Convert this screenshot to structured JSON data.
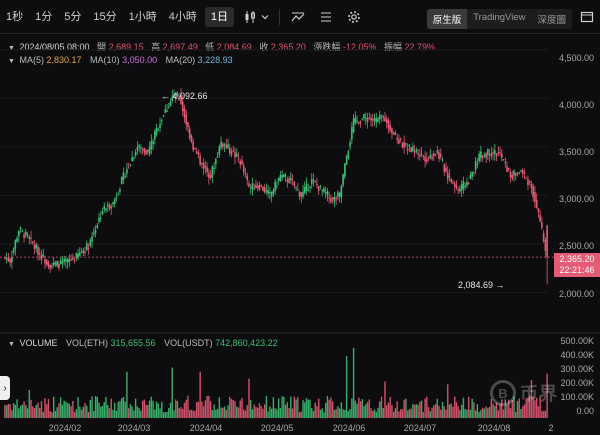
{
  "toolbar": {
    "timeframes": [
      "1秒",
      "1分",
      "5分",
      "15分",
      "1小時",
      "4小時",
      "1日"
    ],
    "active_timeframe": "1日",
    "views": [
      "原生版",
      "TradingView",
      "深度圖"
    ],
    "active_view": "原生版"
  },
  "ohlc": {
    "date": "2024/08/05 08:00",
    "open_label": "開",
    "open": "2,689.15",
    "high_label": "高",
    "high": "2,697.49",
    "low_label": "低",
    "low": "2,084.69",
    "close_label": "收",
    "close": "2,365.20",
    "change_label": "漲跌幅",
    "change": "-12.05%",
    "amp_label": "振幅",
    "amp": "22.79%"
  },
  "ma": {
    "ma5_label": "MA(5)",
    "ma5": "2,830.17",
    "ma10_label": "MA(10)",
    "ma10": "3,050.00",
    "ma20_label": "MA(20)",
    "ma20": "3,228.93"
  },
  "volume": {
    "label": "VOLUME",
    "eth_label": "VOL(ETH)",
    "eth": "315,655.56",
    "usdt_label": "VOL(USDT)",
    "usdt": "742,860,423.22"
  },
  "price_axis": [
    "4,500.00",
    "4,000.00",
    "3,500.00",
    "3,000.00",
    "2,500.00",
    "2,000.00"
  ],
  "volume_axis": [
    "500.00K",
    "400.00K",
    "300.00K",
    "200.00K",
    "100.00K",
    "0.00"
  ],
  "x_axis": [
    "2024/02",
    "2024/03",
    "2024/04",
    "2024/05",
    "2024/06",
    "2024/07",
    "2024/08",
    "2"
  ],
  "current_price": {
    "price": "2,365.20",
    "countdown": "22:21:46",
    "value": 2365.2
  },
  "annotations": {
    "high": "4,092.66",
    "low": "2,084.69"
  },
  "colors": {
    "up": "#3fbf74",
    "down": "#e35b74",
    "bg": "#0d0d0f",
    "grid": "#1c1c1f"
  },
  "icons": [
    "candle-type-icon",
    "dropdown-chevron-icon",
    "indicators-icon",
    "drawing-tools-icon",
    "settings-gear-icon",
    "window-icon"
  ],
  "chart_data": {
    "type": "candlestick",
    "x_range": [
      "2024/01/08",
      "2024/08/05"
    ],
    "ylim": [
      1800,
      4600
    ],
    "volume_ylim": [
      0,
      520000
    ],
    "anchors": [
      {
        "t": 0,
        "p": 2360
      },
      {
        "t": 3,
        "p": 2330
      },
      {
        "t": 8,
        "p": 2650
      },
      {
        "t": 14,
        "p": 2550
      },
      {
        "t": 20,
        "p": 2400
      },
      {
        "t": 26,
        "p": 2280
      },
      {
        "t": 33,
        "p": 2300
      },
      {
        "t": 40,
        "p": 2350
      },
      {
        "t": 48,
        "p": 2490
      },
      {
        "t": 56,
        "p": 2850
      },
      {
        "t": 62,
        "p": 2920
      },
      {
        "t": 70,
        "p": 3280
      },
      {
        "t": 76,
        "p": 3500
      },
      {
        "t": 82,
        "p": 3450
      },
      {
        "t": 90,
        "p": 3800
      },
      {
        "t": 96,
        "p": 4000
      },
      {
        "t": 100,
        "p": 4020
      },
      {
        "t": 104,
        "p": 3750
      },
      {
        "t": 108,
        "p": 3500
      },
      {
        "t": 112,
        "p": 3350
      },
      {
        "t": 118,
        "p": 3200
      },
      {
        "t": 124,
        "p": 3550
      },
      {
        "t": 130,
        "p": 3450
      },
      {
        "t": 135,
        "p": 3350
      },
      {
        "t": 140,
        "p": 3080
      },
      {
        "t": 146,
        "p": 3100
      },
      {
        "t": 152,
        "p": 3000
      },
      {
        "t": 158,
        "p": 3200
      },
      {
        "t": 164,
        "p": 3150
      },
      {
        "t": 170,
        "p": 3000
      },
      {
        "t": 176,
        "p": 3150
      },
      {
        "t": 182,
        "p": 3050
      },
      {
        "t": 188,
        "p": 2950
      },
      {
        "t": 192,
        "p": 3000
      },
      {
        "t": 196,
        "p": 3400
      },
      {
        "t": 200,
        "p": 3750
      },
      {
        "t": 206,
        "p": 3800
      },
      {
        "t": 212,
        "p": 3770
      },
      {
        "t": 218,
        "p": 3800
      },
      {
        "t": 224,
        "p": 3600
      },
      {
        "t": 230,
        "p": 3500
      },
      {
        "t": 236,
        "p": 3450
      },
      {
        "t": 242,
        "p": 3380
      },
      {
        "t": 248,
        "p": 3450
      },
      {
        "t": 254,
        "p": 3200
      },
      {
        "t": 260,
        "p": 3050
      },
      {
        "t": 266,
        "p": 3150
      },
      {
        "t": 272,
        "p": 3400
      },
      {
        "t": 278,
        "p": 3450
      },
      {
        "t": 284,
        "p": 3420
      },
      {
        "t": 290,
        "p": 3200
      },
      {
        "t": 296,
        "p": 3250
      },
      {
        "t": 302,
        "p": 3100
      },
      {
        "t": 306,
        "p": 2800
      },
      {
        "t": 310,
        "p": 2450
      },
      {
        "t": 311,
        "p": 2365
      }
    ],
    "volume_spikes": [
      {
        "t": 14,
        "v": 200000
      },
      {
        "t": 70,
        "v": 330000
      },
      {
        "t": 96,
        "v": 360000
      },
      {
        "t": 112,
        "v": 330000
      },
      {
        "t": 140,
        "v": 280000
      },
      {
        "t": 196,
        "v": 440000
      },
      {
        "t": 200,
        "v": 500000
      },
      {
        "t": 218,
        "v": 260000
      },
      {
        "t": 254,
        "v": 240000
      },
      {
        "t": 302,
        "v": 270000
      },
      {
        "t": 311,
        "v": 315656
      }
    ],
    "ma_series": [
      {
        "name": "MA(5)",
        "color": "#e7a64d",
        "value": 2830.17
      },
      {
        "name": "MA(10)",
        "color": "#d070d8",
        "value": 3050.0
      },
      {
        "name": "MA(20)",
        "color": "#6fb8d6",
        "value": 3228.93
      }
    ]
  }
}
